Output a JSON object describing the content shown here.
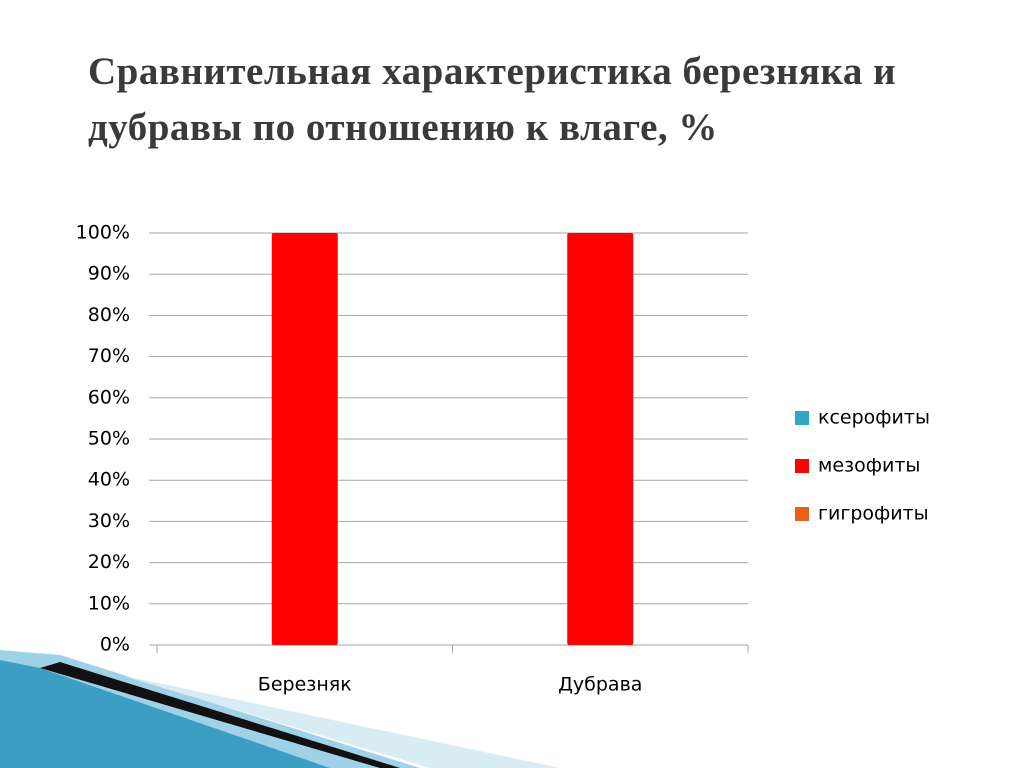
{
  "chart_data": {
    "type": "bar",
    "stacked": true,
    "title": "Сравнительная характеристика березняка и дубравы по отношению к влаге, %",
    "categories": [
      "Березняк",
      "Дубрава"
    ],
    "series": [
      {
        "name": "ксерофиты",
        "color": "#31a6c4",
        "values": [
          0,
          0
        ]
      },
      {
        "name": "мезофиты",
        "color": "#ff0000",
        "values": [
          100,
          100
        ]
      },
      {
        "name": "гигрофиты",
        "color": "#e8601c",
        "values": [
          0,
          0
        ]
      }
    ],
    "ylim": [
      0,
      100
    ],
    "yticks": [
      {
        "value": 0,
        "label": "0%"
      },
      {
        "value": 10,
        "label": "10%"
      },
      {
        "value": 20,
        "label": "20%"
      },
      {
        "value": 30,
        "label": "30%"
      },
      {
        "value": 40,
        "label": "40%"
      },
      {
        "value": 50,
        "label": "50%"
      },
      {
        "value": 60,
        "label": "60%"
      },
      {
        "value": 70,
        "label": "70%"
      },
      {
        "value": 80,
        "label": "80%"
      },
      {
        "value": 90,
        "label": "90%"
      },
      {
        "value": 100,
        "label": "100%"
      }
    ],
    "grid": true,
    "legend": "right"
  }
}
